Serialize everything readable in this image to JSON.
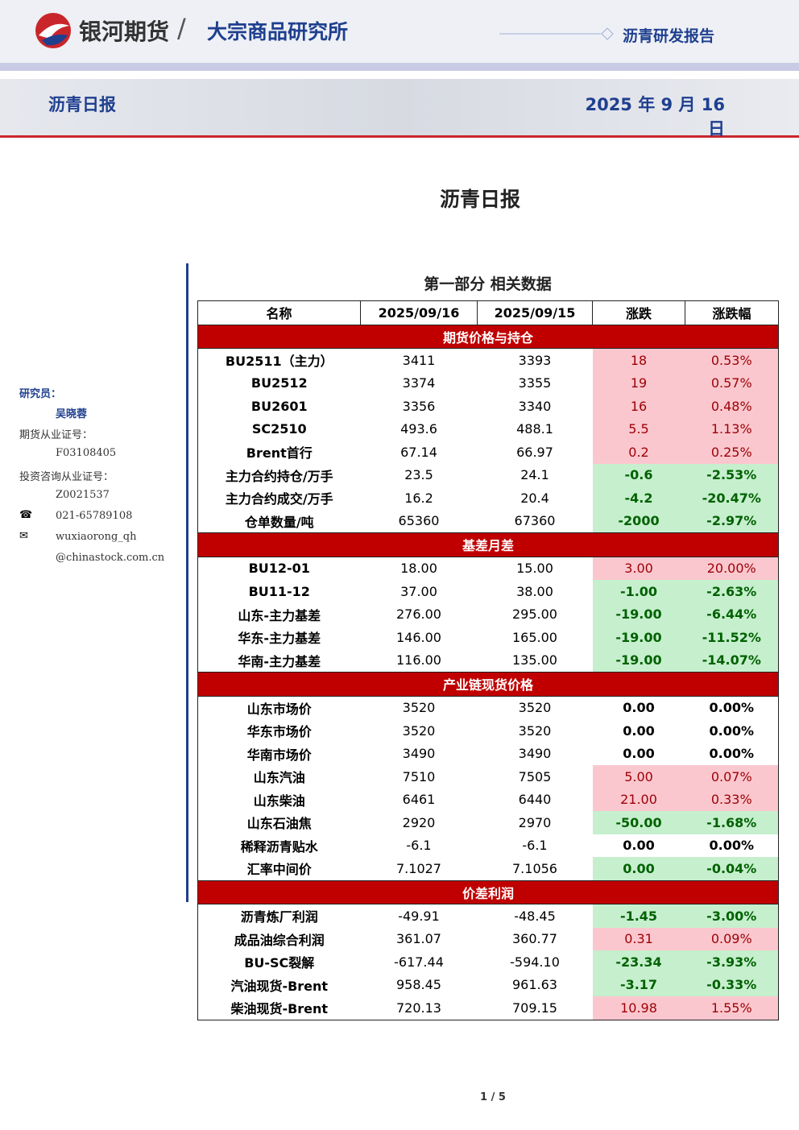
{
  "header": {
    "company": "银河期货",
    "institute": "大宗商品研究所",
    "report_type": "沥青研发报告",
    "title": "沥青日报",
    "date": "2025 年 9 月 16 日"
  },
  "title": "沥青日报",
  "sidebar": {
    "items": [
      "研究员：",
      "吴晓蓉",
      "期货从业证号：",
      "F03108405",
      "投资咨询从业证号：",
      "Z0021537",
      "021-65789108",
      "wuxiaorong_qh",
      "@chinastock.com.cn"
    ]
  },
  "section_title": "第一部分 相关数据",
  "table": {
    "columns": [
      "名称",
      "2025/09/16",
      "2025/09/15",
      "涨跌",
      "涨跌幅"
    ],
    "groups": [
      {
        "name": "期货价格与持仓",
        "tones": [
          "up",
          "up",
          "up",
          "up",
          "up",
          "down",
          "down",
          "down"
        ],
        "rows": [
          [
            "BU2511（主力）",
            "3411",
            "3393",
            "18",
            "0.53%"
          ],
          [
            "BU2512",
            "3374",
            "3355",
            "19",
            "0.57%"
          ],
          [
            "BU2601",
            "3356",
            "3340",
            "16",
            "0.48%"
          ],
          [
            "SC2510",
            "493.6",
            "488.1",
            "5.5",
            "1.13%"
          ],
          [
            "Brent首行",
            "67.14",
            "66.97",
            "0.2",
            "0.25%"
          ],
          [
            "主力合约持仓/万手",
            "23.5",
            "24.1",
            "-0.6",
            "-2.53%"
          ],
          [
            "主力合约成交/万手",
            "16.2",
            "20.4",
            "-4.2",
            "-20.47%"
          ],
          [
            "仓单数量/吨",
            "65360",
            "67360",
            "-2000",
            "-2.97%"
          ]
        ]
      },
      {
        "name": "基差月差",
        "tones": [
          "up",
          "down",
          "down",
          "down",
          "down"
        ],
        "rows": [
          [
            "BU12-01",
            "18.00",
            "15.00",
            "3.00",
            "20.00%"
          ],
          [
            "BU11-12",
            "37.00",
            "38.00",
            "-1.00",
            "-2.63%"
          ],
          [
            "山东-主力基差",
            "276.00",
            "295.00",
            "-19.00",
            "-6.44%"
          ],
          [
            "华东-主力基差",
            "146.00",
            "165.00",
            "-19.00",
            "-11.52%"
          ],
          [
            "华南-主力基差",
            "116.00",
            "135.00",
            "-19.00",
            "-14.07%"
          ]
        ]
      },
      {
        "name": "产业链现货价格",
        "tones": [
          "none",
          "none",
          "none",
          "up",
          "up",
          "down",
          "none",
          "down"
        ],
        "rows": [
          [
            "山东市场价",
            "3520",
            "3520",
            "0.00",
            "0.00%"
          ],
          [
            "华东市场价",
            "3520",
            "3520",
            "0.00",
            "0.00%"
          ],
          [
            "华南市场价",
            "3490",
            "3490",
            "0.00",
            "0.00%"
          ],
          [
            "山东汽油",
            "7510",
            "7505",
            "5.00",
            "0.07%"
          ],
          [
            "山东柴油",
            "6461",
            "6440",
            "21.00",
            "0.33%"
          ],
          [
            "山东石油焦",
            "2920",
            "2970",
            "-50.00",
            "-1.68%"
          ],
          [
            "稀释沥青贴水",
            "-6.1",
            "-6.1",
            "0.00",
            "0.00%"
          ],
          [
            "汇率中间价",
            "7.1027",
            "7.1056",
            "0.00",
            "-0.04%"
          ]
        ]
      },
      {
        "name": "价差利润",
        "tones": [
          "down",
          "up",
          "down",
          "down",
          "up"
        ],
        "rows": [
          [
            "沥青炼厂利润",
            "-49.91",
            "-48.45",
            "-1.45",
            "-3.00%"
          ],
          [
            "成品油综合利润",
            "361.07",
            "360.77",
            "0.31",
            "0.09%"
          ],
          [
            "BU-SC裂解",
            "-617.44",
            "-594.10",
            "-23.34",
            "-3.93%"
          ],
          [
            "汽油现货-Brent",
            "958.45",
            "961.63",
            "-3.17",
            "-0.33%"
          ],
          [
            "柴油现货-Brent",
            "720.13",
            "709.15",
            "10.98",
            "1.55%"
          ]
        ]
      }
    ]
  },
  "page": "1 / 5"
}
